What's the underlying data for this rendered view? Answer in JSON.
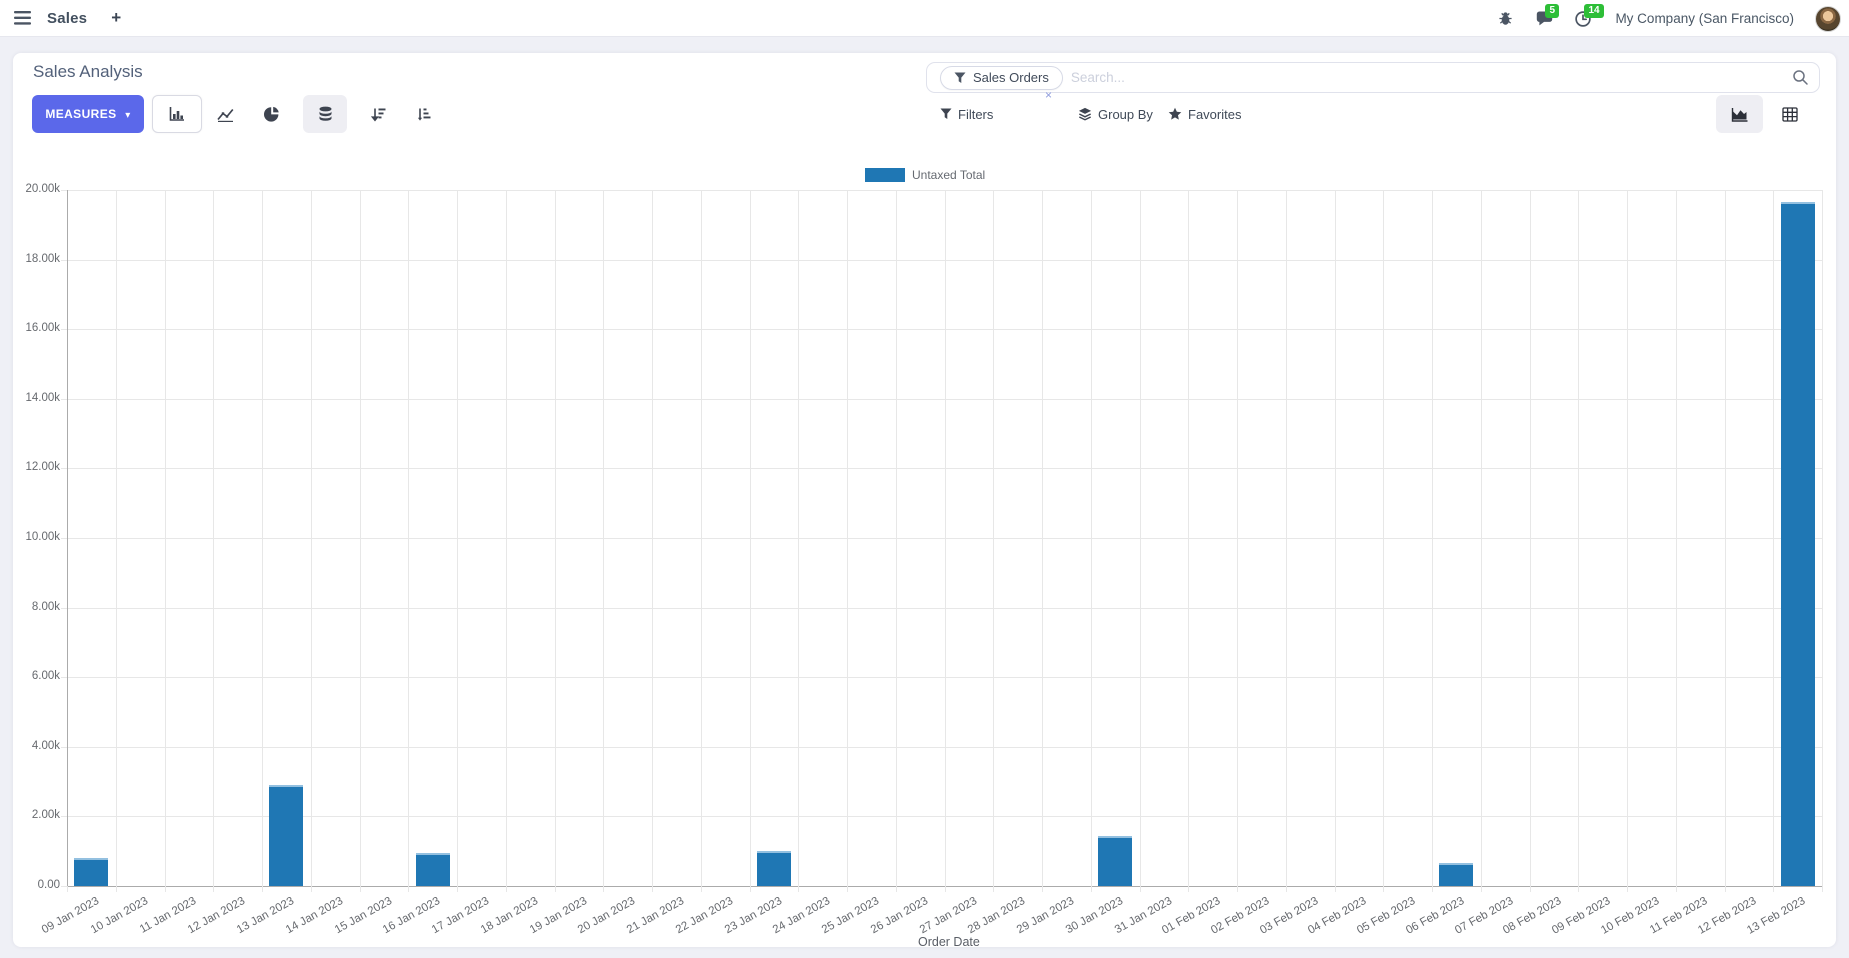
{
  "navbar": {
    "app_name": "Sales",
    "messages_badge": "5",
    "activities_badge": "14",
    "company": "My Company (San Francisco)"
  },
  "icons": {
    "plus": "+",
    "caret": "▾",
    "facet_remove": "×"
  },
  "control_panel": {
    "title": "Sales Analysis",
    "measures_label": "MEASURES",
    "search": {
      "facet": "Sales Orders",
      "placeholder": "Search..."
    },
    "filters_label": "Filters",
    "group_by_label": "Group By",
    "favorites_label": "Favorites"
  },
  "colors": {
    "accent": "#5b68ea",
    "bar": "#1f77b4",
    "badge": "#2dbe37"
  },
  "chart_data": {
    "type": "bar",
    "title": "",
    "legend": [
      "Untaxed Total"
    ],
    "xlabel": "Order Date",
    "bar_color": "#1f77b4",
    "ylim": [
      0,
      20000
    ],
    "ytick_step": 2000,
    "ytick_labels": [
      "0.00",
      "2.00k",
      "4.00k",
      "6.00k",
      "8.00k",
      "10.00k",
      "12.00k",
      "14.00k",
      "16.00k",
      "18.00k",
      "20.00k"
    ],
    "grid": true,
    "legend_position": "top",
    "categories": [
      "09 Jan 2023",
      "10 Jan 2023",
      "11 Jan 2023",
      "12 Jan 2023",
      "13 Jan 2023",
      "14 Jan 2023",
      "15 Jan 2023",
      "16 Jan 2023",
      "17 Jan 2023",
      "18 Jan 2023",
      "19 Jan 2023",
      "20 Jan 2023",
      "21 Jan 2023",
      "22 Jan 2023",
      "23 Jan 2023",
      "24 Jan 2023",
      "25 Jan 2023",
      "26 Jan 2023",
      "27 Jan 2023",
      "28 Jan 2023",
      "29 Jan 2023",
      "30 Jan 2023",
      "31 Jan 2023",
      "01 Feb 2023",
      "02 Feb 2023",
      "03 Feb 2023",
      "04 Feb 2023",
      "05 Feb 2023",
      "06 Feb 2023",
      "07 Feb 2023",
      "08 Feb 2023",
      "09 Feb 2023",
      "10 Feb 2023",
      "11 Feb 2023",
      "12 Feb 2023",
      "13 Feb 2023"
    ],
    "values": [
      800,
      0,
      0,
      0,
      2900,
      0,
      0,
      950,
      0,
      0,
      0,
      0,
      0,
      0,
      1000,
      0,
      0,
      0,
      0,
      0,
      0,
      1450,
      0,
      0,
      0,
      0,
      0,
      0,
      650,
      0,
      0,
      0,
      0,
      0,
      0,
      19650
    ]
  }
}
